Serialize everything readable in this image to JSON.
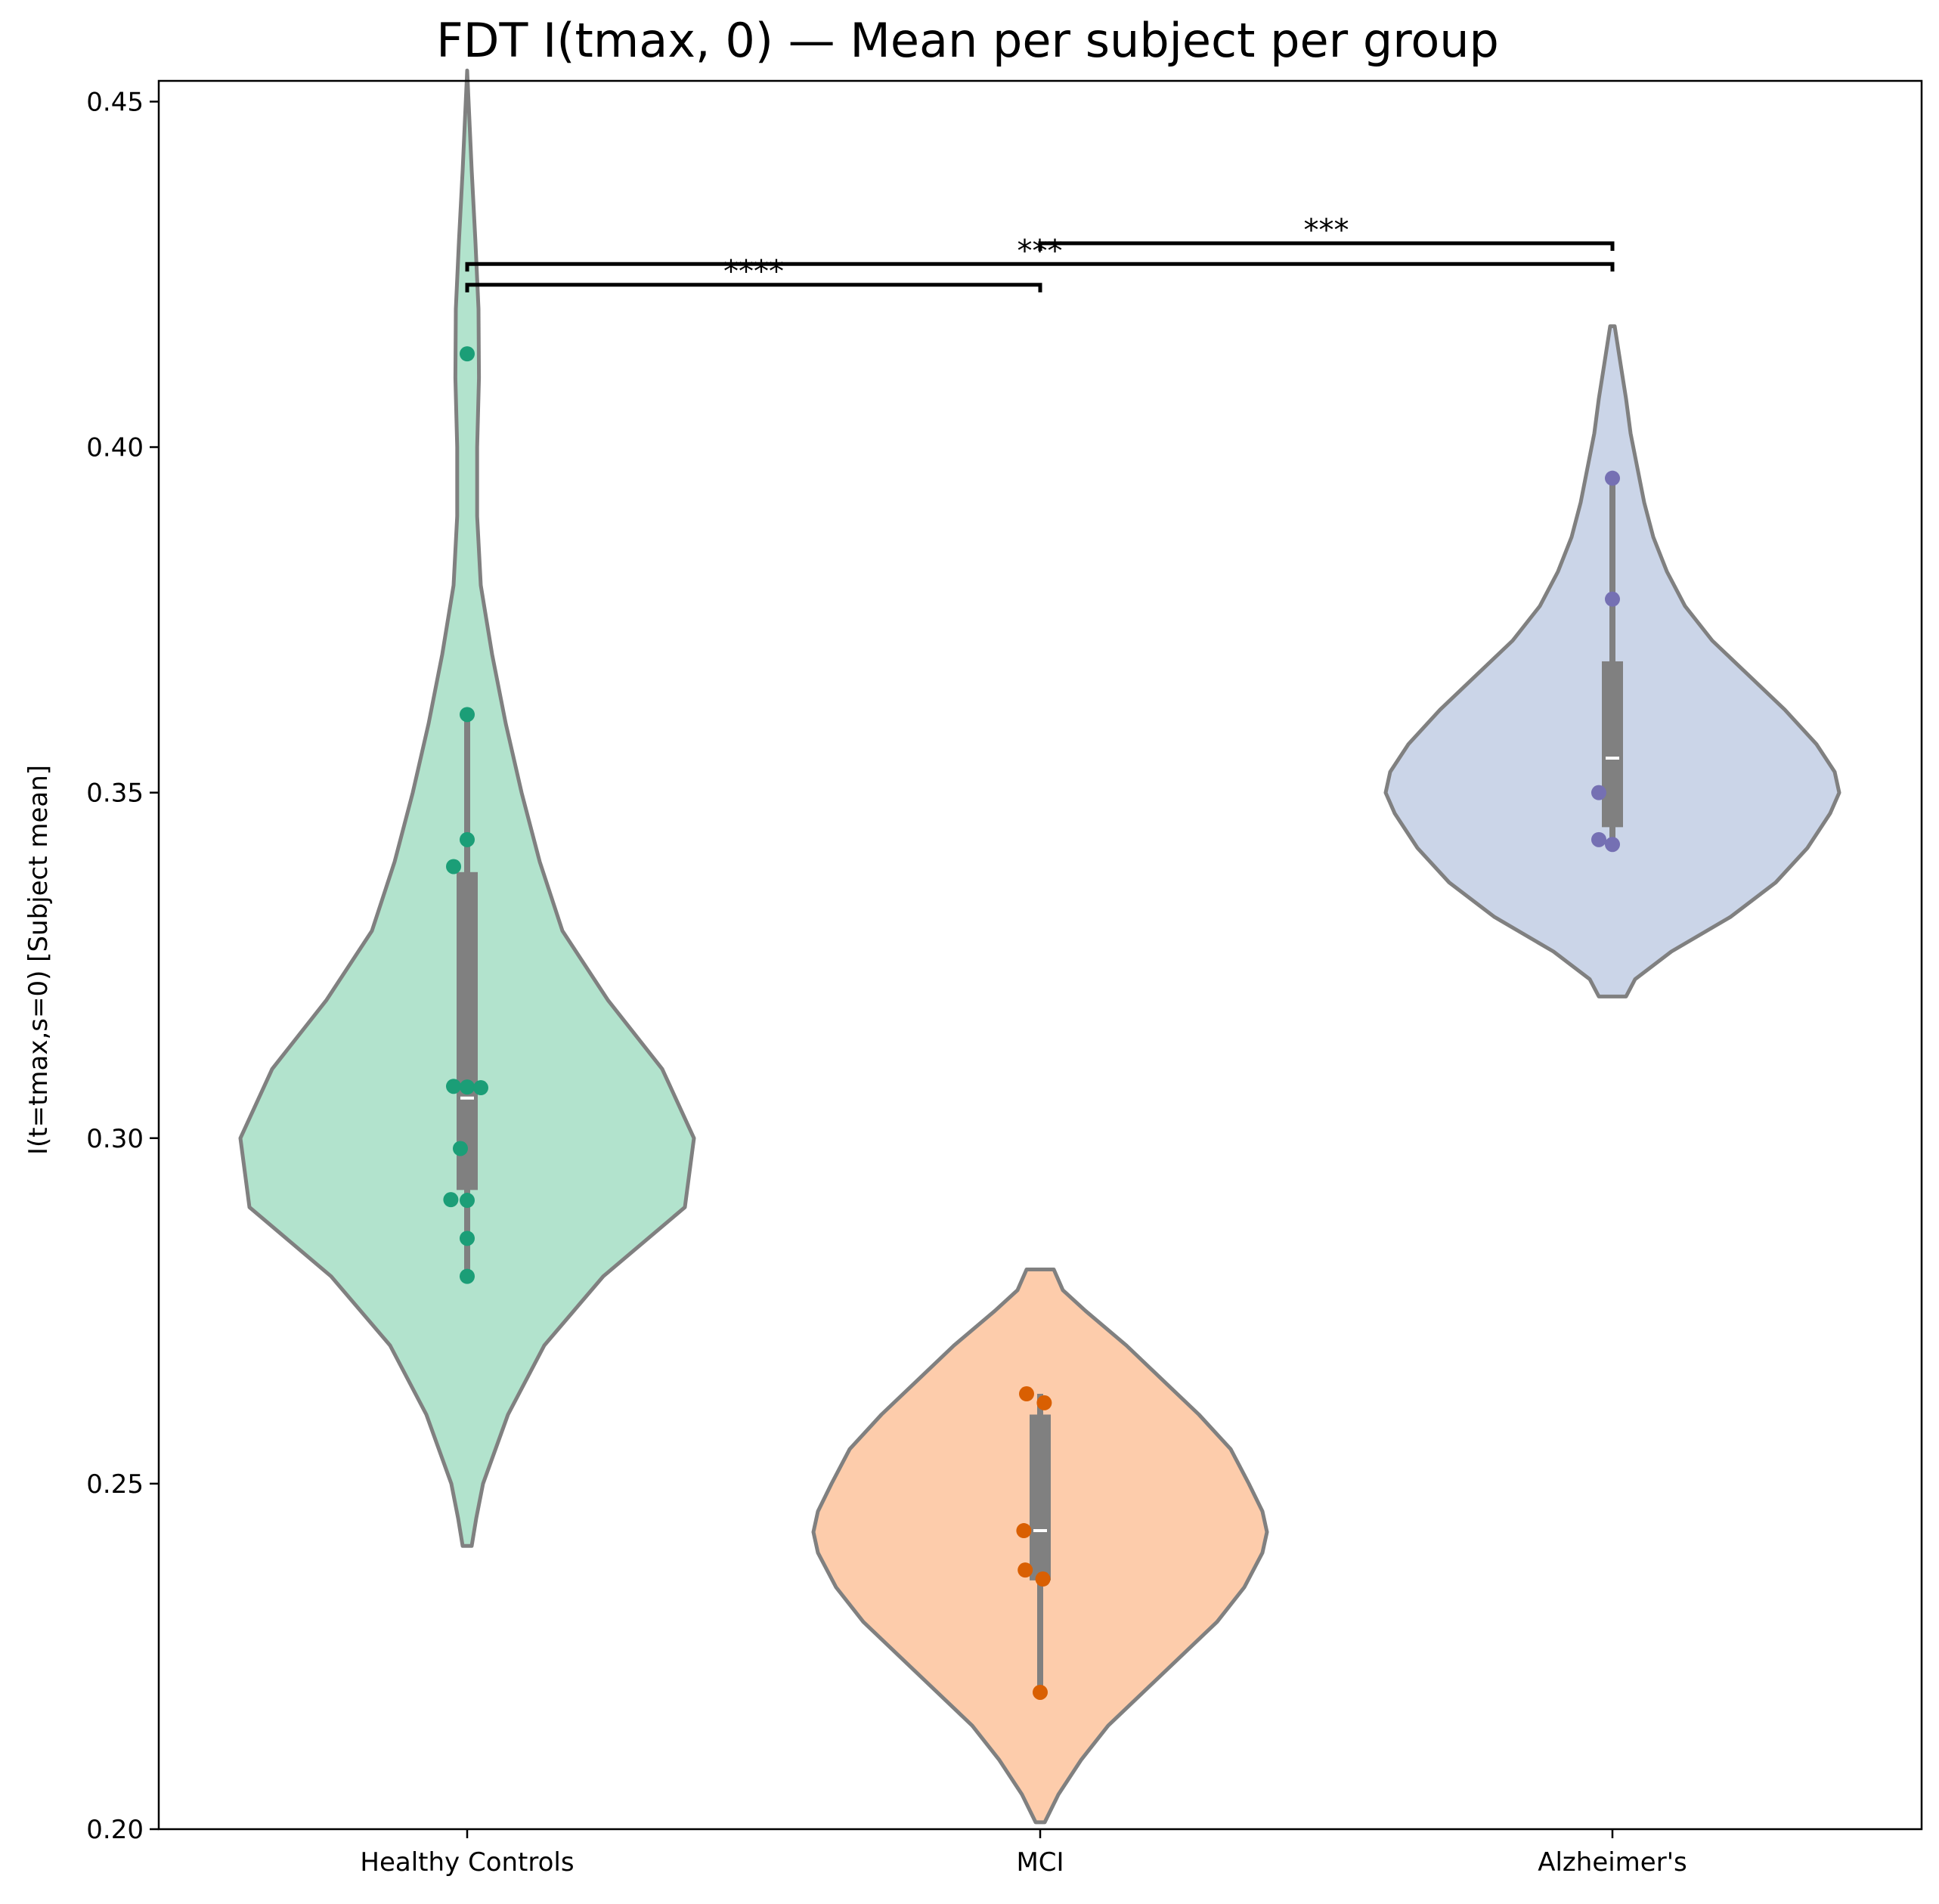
{
  "chart_data": {
    "type": "violin",
    "title": "FDT I(tmax, 0) — Mean per subject per group",
    "xlabel": "",
    "ylabel": "I(t=tmax,s=0) [Subject mean]",
    "ylim": [
      0.2,
      0.453
    ],
    "yticks": [
      0.2,
      0.25,
      0.3,
      0.35,
      0.4,
      0.45
    ],
    "ytick_labels": [
      "0.20",
      "0.25",
      "0.30",
      "0.35",
      "0.40",
      "0.45"
    ],
    "categories": [
      "Healthy Controls",
      "MCI",
      "Alzheimer's"
    ],
    "grid": false,
    "legend": "none",
    "groups": [
      {
        "name": "Healthy Controls",
        "fill": "#b2e3cd",
        "point_color": "#1b9e77",
        "median": 0.3058,
        "q1": 0.2925,
        "q3": 0.3385,
        "whisker_low": 0.28,
        "whisker_high": 0.3613,
        "kde_range": [
          0.241,
          0.4545
        ],
        "profile": [
          [
            0.241,
            0.01
          ],
          [
            0.245,
            0.02
          ],
          [
            0.25,
            0.035
          ],
          [
            0.26,
            0.09
          ],
          [
            0.27,
            0.17
          ],
          [
            0.28,
            0.3
          ],
          [
            0.29,
            0.48
          ],
          [
            0.3,
            0.5
          ],
          [
            0.31,
            0.43
          ],
          [
            0.32,
            0.31
          ],
          [
            0.33,
            0.21
          ],
          [
            0.34,
            0.16
          ],
          [
            0.35,
            0.12
          ],
          [
            0.36,
            0.085
          ],
          [
            0.37,
            0.055
          ],
          [
            0.38,
            0.03
          ],
          [
            0.39,
            0.022
          ],
          [
            0.4,
            0.022
          ],
          [
            0.41,
            0.026
          ],
          [
            0.42,
            0.025
          ],
          [
            0.43,
            0.018
          ],
          [
            0.44,
            0.01
          ],
          [
            0.4545,
            0.0
          ]
        ],
        "points": [
          0.4135,
          0.3613,
          0.3432,
          0.3393,
          0.3075,
          0.3074,
          0.3073,
          0.2985,
          0.2911,
          0.291,
          0.2855,
          0.28
        ],
        "jitter": [
          0,
          0,
          0,
          -1,
          -1,
          0,
          1,
          -0.5,
          -1.2,
          0,
          0,
          0
        ]
      },
      {
        "name": "MCI",
        "fill": "#fdccab",
        "point_color": "#d95f02",
        "median": 0.2432,
        "q1": 0.236,
        "q3": 0.26,
        "whisker_low": 0.22,
        "whisker_high": 0.263,
        "kde_range": [
          0.201,
          0.281
        ],
        "profile": [
          [
            0.201,
            0.01
          ],
          [
            0.205,
            0.04
          ],
          [
            0.21,
            0.09
          ],
          [
            0.215,
            0.15
          ],
          [
            0.22,
            0.23
          ],
          [
            0.225,
            0.31
          ],
          [
            0.23,
            0.39
          ],
          [
            0.235,
            0.45
          ],
          [
            0.24,
            0.49
          ],
          [
            0.243,
            0.5
          ],
          [
            0.246,
            0.49
          ],
          [
            0.25,
            0.46
          ],
          [
            0.255,
            0.42
          ],
          [
            0.26,
            0.35
          ],
          [
            0.265,
            0.27
          ],
          [
            0.27,
            0.19
          ],
          [
            0.275,
            0.1
          ],
          [
            0.278,
            0.05
          ],
          [
            0.281,
            0.03
          ]
        ],
        "points": [
          0.263,
          0.2617,
          0.2432,
          0.2375,
          0.2362,
          0.2198
        ],
        "jitter": [
          -1,
          0.3,
          -1.2,
          -1.1,
          0.2,
          0
        ]
      },
      {
        "name": "Alzheimer's",
        "fill": "#cbd5e8",
        "point_color": "#7570b3",
        "median": 0.355,
        "q1": 0.345,
        "q3": 0.369,
        "whisker_low": 0.3425,
        "whisker_high": 0.3955,
        "kde_range": [
          0.3205,
          0.4175
        ],
        "profile": [
          [
            0.3205,
            0.03
          ],
          [
            0.323,
            0.05
          ],
          [
            0.327,
            0.13
          ],
          [
            0.332,
            0.26
          ],
          [
            0.337,
            0.36
          ],
          [
            0.342,
            0.43
          ],
          [
            0.347,
            0.48
          ],
          [
            0.35,
            0.5
          ],
          [
            0.353,
            0.49
          ],
          [
            0.357,
            0.45
          ],
          [
            0.362,
            0.38
          ],
          [
            0.367,
            0.3
          ],
          [
            0.372,
            0.22
          ],
          [
            0.377,
            0.16
          ],
          [
            0.382,
            0.12
          ],
          [
            0.387,
            0.09
          ],
          [
            0.392,
            0.07
          ],
          [
            0.397,
            0.055
          ],
          [
            0.402,
            0.04
          ],
          [
            0.407,
            0.03
          ],
          [
            0.412,
            0.018
          ],
          [
            0.4175,
            0.005
          ]
        ],
        "points": [
          0.3955,
          0.378,
          0.35,
          0.3432,
          0.3425
        ],
        "jitter": [
          0,
          0,
          -1,
          -1,
          0
        ]
      }
    ],
    "significance": [
      {
        "from": 0,
        "to": 1,
        "y": 0.4235,
        "label": "****"
      },
      {
        "from": 0,
        "to": 2,
        "y": 0.4265,
        "label": "***"
      },
      {
        "from": 1,
        "to": 2,
        "y": 0.4295,
        "label": "***"
      }
    ]
  }
}
